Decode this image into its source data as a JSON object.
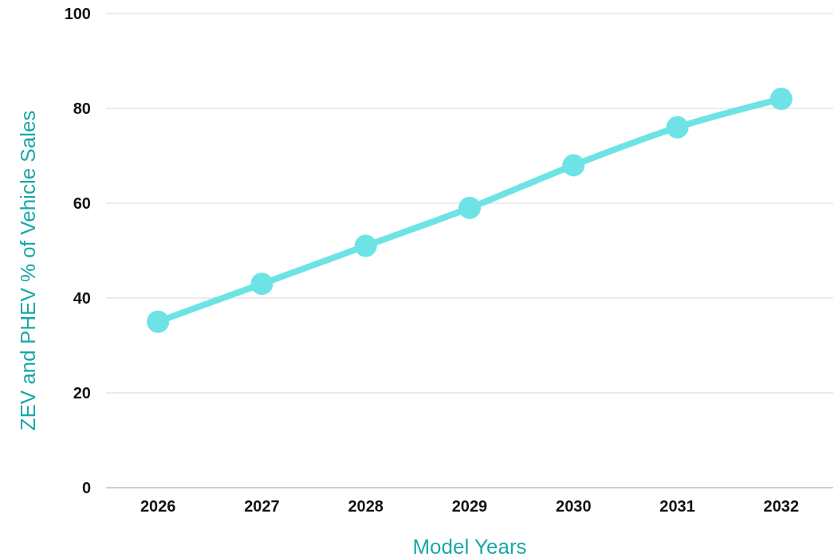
{
  "chart_data": {
    "type": "line",
    "xlabel": "Model Years",
    "ylabel": "ZEV and PHEV % of Vehicle Sales",
    "categories": [
      "2026",
      "2027",
      "2028",
      "2029",
      "2030",
      "2031",
      "2032"
    ],
    "series": [
      {
        "color": "#6ee3e6",
        "values": [
          35,
          43,
          51,
          59,
          68,
          76,
          82
        ]
      }
    ],
    "ylim": [
      0,
      100
    ],
    "yticks": [
      0,
      20,
      40,
      60,
      80,
      100
    ],
    "grid": "y",
    "marker": "circle",
    "line_style": "solid"
  }
}
